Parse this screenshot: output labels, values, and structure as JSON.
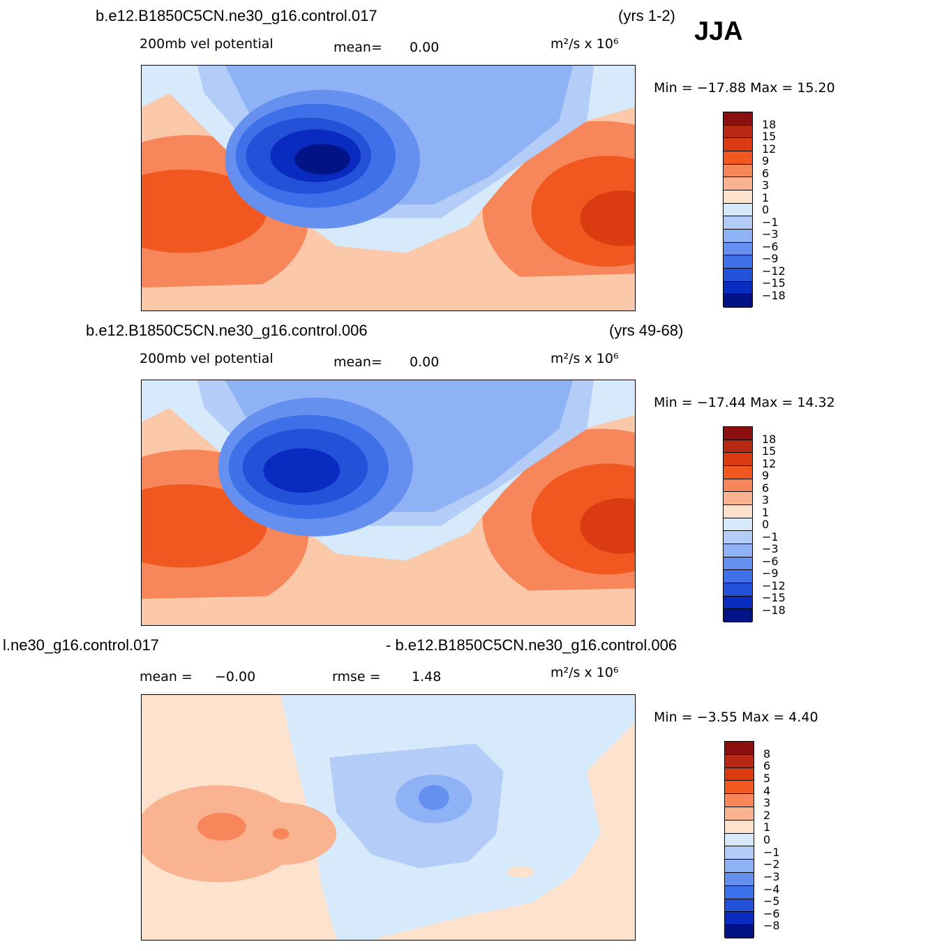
{
  "season": "JJA",
  "panels": [
    {
      "case_title": "b.e12.B1850C5CN.ne30_g16.control.017",
      "years": "(yrs 1-2)",
      "variable": "200mb vel potential",
      "stat1": "mean=",
      "stat1_value": "0.00",
      "units": "m²/s x 10⁶",
      "minmax": "Min = −17.88 Max = 15.20",
      "colorbar_labels": [
        "18",
        "15",
        "12",
        "9",
        "6",
        "3",
        "1",
        "0",
        "−1",
        "−3",
        "−6",
        "−9",
        "−12",
        "−15",
        "−18"
      ],
      "colorbar_colors": [
        "#8b0f0f",
        "#b72812",
        "#db3b10",
        "#f0581f",
        "#f7875a",
        "#fab391",
        "#fde3ce",
        "#d6eafb",
        "#b3cdf8",
        "#8fb1f5",
        "#6590ef",
        "#3d70e9",
        "#2351d8",
        "#0a2bbf",
        "#021485"
      ]
    },
    {
      "case_title": "b.e12.B1850C5CN.ne30_g16.control.006",
      "years": "(yrs 49-68)",
      "variable": "200mb vel potential",
      "stat1": "mean=",
      "stat1_value": "0.00",
      "units": "m²/s x 10⁶",
      "minmax": "Min = −17.44 Max = 14.32",
      "colorbar_labels": [
        "18",
        "15",
        "12",
        "9",
        "6",
        "3",
        "1",
        "0",
        "−1",
        "−3",
        "−6",
        "−9",
        "−12",
        "−15",
        "−18"
      ],
      "colorbar_colors": [
        "#8b0f0f",
        "#b72812",
        "#db3b10",
        "#f0581f",
        "#f7875a",
        "#fab391",
        "#fde3ce",
        "#d6eafb",
        "#b3cdf8",
        "#8fb1f5",
        "#6590ef",
        "#3d70e9",
        "#2351d8",
        "#0a2bbf",
        "#021485"
      ]
    },
    {
      "case_title_left": "l.ne30_g16.control.017",
      "case_title_right": "- b.e12.B1850C5CN.ne30_g16.control.006",
      "stat1": "mean =",
      "stat1_value": "−0.00",
      "stat2": "rmse =",
      "stat2_value": "1.48",
      "units": "m²/s x 10⁶",
      "minmax": "Min = −3.55 Max = 4.40",
      "colorbar_labels": [
        "8",
        "6",
        "5",
        "4",
        "3",
        "2",
        "1",
        "0",
        "−1",
        "−2",
        "−3",
        "−4",
        "−5",
        "−6",
        "−8"
      ],
      "colorbar_colors": [
        "#8b0f0f",
        "#b72812",
        "#db3b10",
        "#f0581f",
        "#f7875a",
        "#fab391",
        "#fde3ce",
        "#d6eafb",
        "#b3cdf8",
        "#8fb1f5",
        "#6590ef",
        "#3d70e9",
        "#2351d8",
        "#0a2bbf",
        "#021485"
      ]
    }
  ]
}
